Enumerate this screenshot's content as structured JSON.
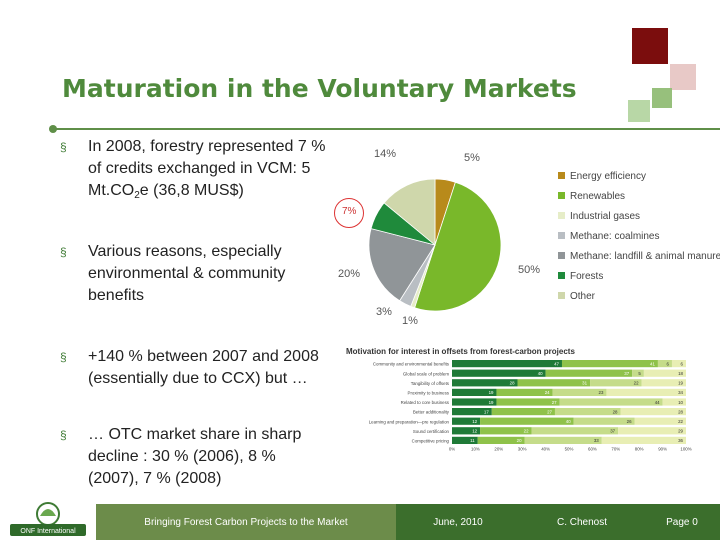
{
  "title": "Maturation in the Voluntary Markets",
  "bullets": [
    {
      "marker": "§",
      "line1_pre": "In 2008, forestry represented 7 % of credits exchanged in VCM: 5 Mt.CO",
      "sub": "2",
      "line1_post": "e (36,8 MUS$)"
    },
    {
      "marker": "§",
      "text": "Various reasons, especially environmental & community benefits"
    },
    {
      "marker": "§",
      "text": "+140 % between 2007 and 2008 (essentially due to CCX) but …"
    },
    {
      "marker": "§",
      "text": "… OTC market share in sharp decline : 30 % (2006), 8 % (2007), 7 % (2008)"
    }
  ],
  "chart_data": [
    {
      "type": "pie",
      "slices": [
        {
          "name": "Energy efficiency",
          "value": 5,
          "label": "5%",
          "color": "#b88a1b"
        },
        {
          "name": "Renewables",
          "value": 50,
          "label": "50%",
          "color": "#79b82a"
        },
        {
          "name": "Industrial gases",
          "value": 1,
          "label": "1%",
          "color": "#e6edc8"
        },
        {
          "name": "Methane: coalmines",
          "value": 3,
          "label": "3%",
          "color": "#b9bec3"
        },
        {
          "name": "Methane: landfill & animal manure",
          "value": 20,
          "label": "20%",
          "color": "#909598"
        },
        {
          "name": "Forests",
          "value": 7,
          "label": "7%",
          "color": "#1f8a3b"
        },
        {
          "name": "Other",
          "value": 14,
          "label": "14%",
          "color": "#cfd7ab"
        }
      ]
    },
    {
      "type": "bar",
      "title": "Motivation for interest in offsets from forest-carbon projects",
      "categories": [
        "Community and environmental benefits",
        "Global scale of problem",
        "Tangibility of offsets",
        "Proximity to business",
        "Related to core business",
        "Better additionality",
        "Learning and preparation—pre regulation",
        "Sound certification",
        "Competitive pricing"
      ],
      "series": [
        {
          "color": "#1f7a37",
          "values": [
            47,
            40,
            28,
            19,
            19,
            17,
            12,
            12,
            11
          ]
        },
        {
          "color": "#8fc24a",
          "values": [
            41,
            37,
            31,
            24,
            27,
            27,
            40,
            22,
            20
          ]
        },
        {
          "color": "#c5dc8a",
          "values": [
            6,
            5,
            22,
            23,
            44,
            28,
            26,
            37,
            33
          ]
        },
        {
          "color": "#e8eeb4",
          "values": [
            6,
            18,
            19,
            34,
            10,
            28,
            22,
            29,
            36
          ]
        }
      ],
      "tick_labels": [
        "0%",
        "10%",
        "20%",
        "30%",
        "40%",
        "50%",
        "60%",
        "70%",
        "80%",
        "90%",
        "100%"
      ],
      "xlim": [
        0,
        100
      ]
    }
  ],
  "footer": {
    "logo_text": "ONF International",
    "project": "Bringing Forest Carbon Projects to the Market",
    "date": "June, 2010",
    "author": "C. Chenost",
    "page": "Page 0"
  }
}
